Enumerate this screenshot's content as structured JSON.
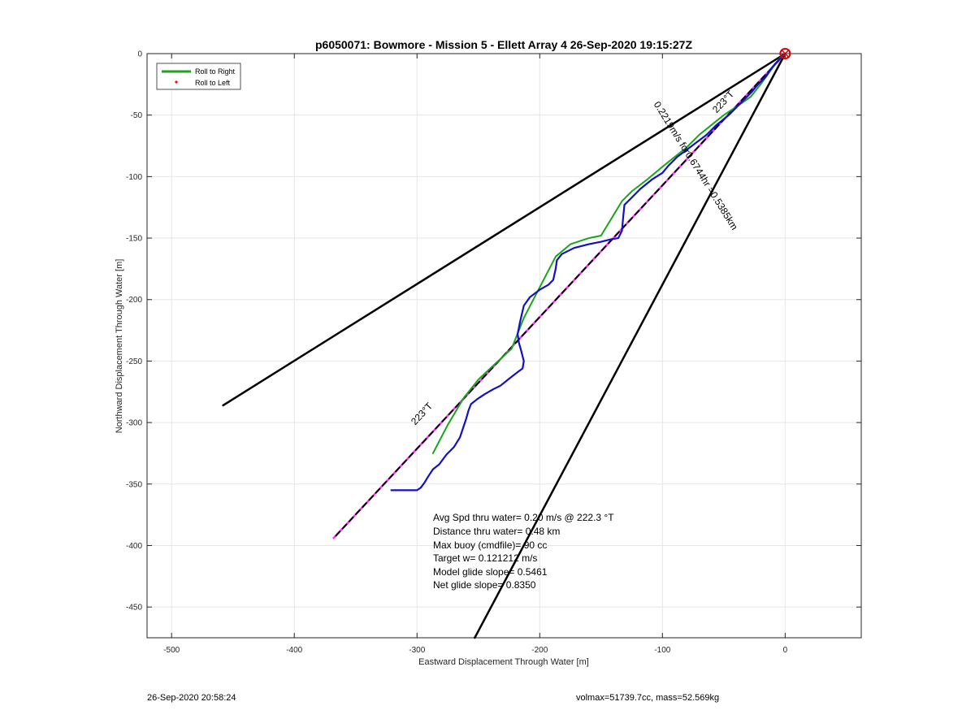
{
  "chart_data": {
    "type": "line",
    "title": "p6050071: Bowmore - Mission 5 - Ellett Array 4 26-Sep-2020 19:15:27Z",
    "xlabel": "Eastward Displacement Through Water [m]",
    "ylabel": "Northward Displacement Through Water [m]",
    "xlim": [
      -520,
      62
    ],
    "ylim": [
      -475,
      0
    ],
    "xticks": [
      -500,
      -400,
      -300,
      -200,
      -100,
      0
    ],
    "yticks": [
      0,
      -50,
      -100,
      -150,
      -200,
      -250,
      -300,
      -350,
      -400,
      -450
    ],
    "grid": true,
    "legend": {
      "placement": "top-left",
      "entries": [
        {
          "label": "Roll to Right",
          "color": "#1aa51a",
          "style": "line"
        },
        {
          "label": "Roll to Left",
          "color": "#ff0000",
          "style": "dot"
        }
      ]
    },
    "series": [
      {
        "color": "#000000",
        "style": "solid",
        "x": [
          0,
          -458
        ],
        "y": [
          0,
          -286
        ]
      },
      {
        "color": "#000000",
        "style": "solid",
        "x": [
          0,
          -253
        ],
        "y": [
          0,
          -475
        ]
      },
      {
        "color": "#ff33ff",
        "style": "solid",
        "x": [
          0,
          -368
        ],
        "y": [
          0,
          -394
        ]
      },
      {
        "color": "#000000",
        "style": "dashed",
        "x": [
          0,
          -368
        ],
        "y": [
          0,
          -394
        ]
      },
      {
        "color": "#1aa51a",
        "style": "solid",
        "x": [
          -3,
          -12,
          -20,
          -28,
          -38,
          -50,
          -60,
          -70,
          -80,
          -90,
          -100,
          -112,
          -125,
          -133,
          -150,
          -160,
          -175,
          -187,
          -200,
          -213,
          -223,
          -236,
          -250,
          -262,
          -275,
          -287
        ],
        "y": [
          -2,
          -14,
          -25,
          -35,
          -42,
          -50,
          -58,
          -66,
          -76,
          -84,
          -92,
          -102,
          -112,
          -120,
          -148,
          -150,
          -155,
          -165,
          -190,
          -215,
          -240,
          -252,
          -265,
          -280,
          -302,
          -325
        ]
      },
      {
        "color": "#1010c8",
        "style": "solid",
        "x": [
          -1,
          -4,
          -8,
          -12,
          -16,
          -22,
          -28,
          -36,
          -46,
          -56,
          -64,
          -72,
          -80,
          -88,
          -95,
          -100,
          -108,
          -118,
          -126,
          -131,
          -132,
          -133,
          -136,
          -142,
          -150,
          -160,
          -172,
          -182,
          -186,
          -187,
          -189,
          -193,
          -200,
          -208,
          -213,
          -216,
          -218,
          -217,
          -215,
          -213,
          -214,
          -218,
          -222,
          -227,
          -232,
          -238,
          -245,
          -251,
          -256,
          -258,
          -260,
          -262,
          -265,
          -270,
          -276,
          -282,
          -287,
          -291,
          -294,
          -297,
          -300,
          -303,
          -308,
          -315,
          -321
        ],
        "y": [
          -1,
          -4,
          -8,
          -13,
          -19,
          -25,
          -32,
          -40,
          -50,
          -58,
          -66,
          -72,
          -78,
          -84,
          -91,
          -97,
          -102,
          -110,
          -118,
          -123,
          -133,
          -144,
          -150,
          -151,
          -153,
          -155,
          -158,
          -163,
          -168,
          -175,
          -184,
          -188,
          -192,
          -198,
          -205,
          -218,
          -228,
          -235,
          -242,
          -250,
          -256,
          -259,
          -262,
          -266,
          -270,
          -273,
          -277,
          -281,
          -285,
          -290,
          -297,
          -303,
          -312,
          -320,
          -326,
          -334,
          -338,
          -344,
          -349,
          -353,
          -355,
          -355,
          -355,
          -355,
          -355
        ]
      }
    ],
    "annotations": {
      "course_label_near": "223°T",
      "course_label_far": "223°T",
      "leg_label": "0.2219m/s for0.6744hr =0.5385km",
      "stats": [
        "Avg Spd thru water=  0.20 m/s @ 222.3 °T",
        "Distance thru water= 0.48 km",
        "Max buoy (cmdfile)= 90 cc",
        "Target w= 0.121212 m/s",
        "Model glide slope= 0.5461",
        "Net glide slope= 0.8350"
      ]
    },
    "start_marker": {
      "x": 0,
      "y": 0,
      "color": "#e00000"
    }
  },
  "footer": {
    "timestamp": "26-Sep-2020 20:58:24",
    "specs": "volmax=51739.7cc, mass=52.569kg"
  }
}
